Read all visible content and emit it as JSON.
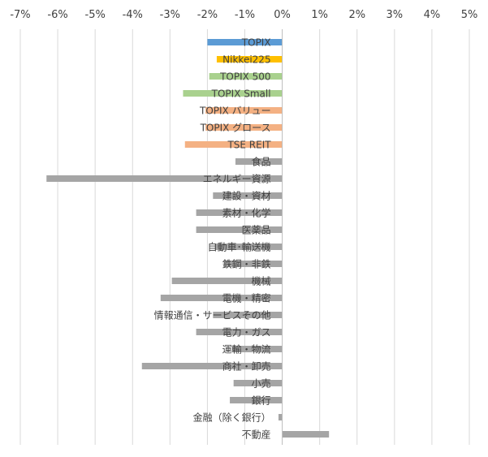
{
  "chart_data": {
    "type": "bar",
    "orientation": "horizontal",
    "title": "",
    "xlabel": "",
    "ylabel": "",
    "xlim": [
      -7,
      5
    ],
    "x_ticks": [
      "-7%",
      "-6%",
      "-5%",
      "-4%",
      "-3%",
      "-2%",
      "-1%",
      "0%",
      "1%",
      "2%",
      "3%",
      "4%",
      "5%"
    ],
    "tick_position": "top",
    "grid": true,
    "legend": "none",
    "categories": [
      "TOPIX",
      "Nikkei225",
      "TOPIX 500",
      "TOPIX Small",
      "TOPIX バリュー",
      "TOPIX グロース",
      "TSE REIT",
      "食品",
      "エネルギー資源",
      "建設・資材",
      "素材・化学",
      "医薬品",
      "自動車･輸送機",
      "鉄鋼・非鉄",
      "機械",
      "電機・精密",
      "情報通信・サービスその他",
      "電力・ガス",
      "運輸・物流",
      "商社・卸売",
      "小売",
      "銀行",
      "金融（除く銀行）",
      "不動産"
    ],
    "values": [
      -2.0,
      -1.75,
      -1.95,
      -2.65,
      -2.05,
      -2.05,
      -2.6,
      -1.25,
      -6.3,
      -1.85,
      -2.3,
      -2.3,
      -1.8,
      -1.55,
      -2.95,
      -3.25,
      -1.85,
      -2.3,
      -1.35,
      -3.75,
      -1.3,
      -1.4,
      -0.1,
      1.25
    ],
    "colors": [
      "#5b9bd5",
      "#ffc000",
      "#a9d18e",
      "#a9d18e",
      "#f4b183",
      "#f4b183",
      "#f4b183",
      "#a5a5a5",
      "#a5a5a5",
      "#a5a5a5",
      "#a5a5a5",
      "#a5a5a5",
      "#a5a5a5",
      "#a5a5a5",
      "#a5a5a5",
      "#a5a5a5",
      "#a5a5a5",
      "#a5a5a5",
      "#a5a5a5",
      "#a5a5a5",
      "#a5a5a5",
      "#a5a5a5",
      "#a5a5a5",
      "#a5a5a5"
    ]
  }
}
